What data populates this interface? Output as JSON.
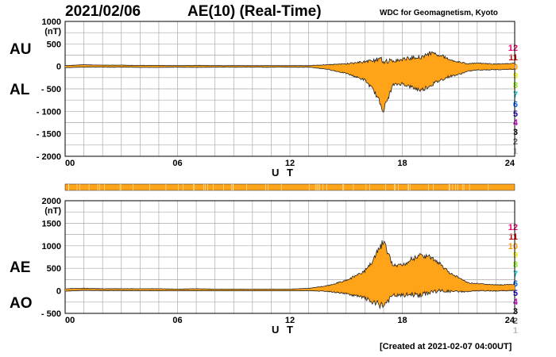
{
  "header": {
    "date": "2021/02/06",
    "title": "AE(10) (Real-Time)",
    "source": "WDC for Geomagnetism, Kyoto",
    "created": "[Created at 2021-02-07 04:00UT]"
  },
  "panel_labels": {
    "top_upper": "AU",
    "top_lower": "AL",
    "bottom_upper": "AE",
    "bottom_lower": "AO"
  },
  "colors": {
    "fill": "#ffa319",
    "outline": "#222222",
    "grid": "#aaaaaa"
  },
  "station_hours": [
    {
      "label": "12",
      "color": "#e8006e"
    },
    {
      "label": "11",
      "color": "#cc0000"
    },
    {
      "label": "10",
      "color": "#ff9900"
    },
    {
      "label": "9",
      "color": "#eeee00"
    },
    {
      "label": "8",
      "color": "#88ee00"
    },
    {
      "label": "7",
      "color": "#00cccc"
    },
    {
      "label": "6",
      "color": "#0066ff"
    },
    {
      "label": "5",
      "color": "#2200cc"
    },
    {
      "label": "4",
      "color": "#cc00cc"
    },
    {
      "label": "3",
      "color": "#000000"
    },
    {
      "label": "2",
      "color": "#666666"
    },
    {
      "label": "1",
      "color": "#bbbbbb"
    }
  ],
  "chart_data": [
    {
      "type": "area",
      "series": [
        {
          "name": "AU",
          "x": [
            0,
            1,
            2,
            3,
            4,
            5,
            6,
            7,
            8,
            9,
            10,
            11,
            12,
            13,
            14,
            15,
            16,
            16.5,
            17,
            17.5,
            18,
            18.5,
            19,
            19.5,
            20,
            20.5,
            21,
            21.5,
            22,
            23,
            24
          ],
          "values": [
            20,
            40,
            30,
            30,
            25,
            25,
            20,
            25,
            20,
            20,
            20,
            20,
            20,
            20,
            45,
            70,
            130,
            190,
            210,
            150,
            190,
            240,
            260,
            340,
            300,
            180,
            120,
            70,
            80,
            60,
            75
          ]
        },
        {
          "name": "AL",
          "x": [
            0,
            1,
            2,
            3,
            4,
            5,
            6,
            7,
            8,
            9,
            10,
            11,
            12,
            13,
            14,
            15,
            16,
            16.5,
            17,
            17.5,
            18,
            18.5,
            19,
            19.5,
            20,
            20.5,
            21,
            21.5,
            22,
            23,
            24
          ],
          "values": [
            -30,
            -20,
            -20,
            -20,
            -25,
            -25,
            -20,
            -25,
            -20,
            -20,
            -20,
            -20,
            -20,
            -20,
            -70,
            -170,
            -330,
            -600,
            -1050,
            -450,
            -420,
            -510,
            -580,
            -470,
            -350,
            -250,
            -200,
            -120,
            -90,
            -80,
            -70
          ]
        }
      ],
      "xlabel": "U T",
      "ylabel": "(nT)",
      "xticks": [
        "00",
        "06",
        "12",
        "18",
        "24"
      ],
      "xlim": [
        0,
        24
      ],
      "ylim": [
        -2000,
        1000
      ],
      "yticks": [
        "1000",
        "500",
        "0",
        "- 500",
        "- 1000",
        "- 1500",
        "- 2000"
      ],
      "grid": true
    },
    {
      "type": "area",
      "series": [
        {
          "name": "AE",
          "x": [
            0,
            1,
            2,
            3,
            4,
            5,
            6,
            7,
            8,
            9,
            10,
            11,
            12,
            13,
            14,
            15,
            16,
            16.5,
            17,
            17.5,
            18,
            18.5,
            19,
            19.5,
            20,
            20.5,
            21,
            21.5,
            22,
            23,
            24
          ],
          "values": [
            50,
            60,
            50,
            50,
            50,
            50,
            40,
            50,
            40,
            40,
            40,
            40,
            40,
            60,
            120,
            250,
            470,
            800,
            1200,
            600,
            610,
            760,
            840,
            810,
            650,
            430,
            320,
            190,
            170,
            140,
            150
          ]
        },
        {
          "name": "AO",
          "x": [
            0,
            1,
            2,
            3,
            4,
            5,
            6,
            7,
            8,
            9,
            10,
            11,
            12,
            13,
            14,
            15,
            16,
            16.5,
            17,
            17.5,
            18,
            18.5,
            19,
            19.5,
            20,
            20.5,
            21,
            21.5,
            22,
            23,
            24
          ],
          "values": [
            -10,
            10,
            5,
            5,
            0,
            0,
            0,
            0,
            0,
            0,
            0,
            0,
            0,
            0,
            -20,
            -80,
            -200,
            -350,
            -420,
            -150,
            -150,
            -130,
            -160,
            -80,
            -40,
            -40,
            -40,
            -30,
            -10,
            -10,
            0
          ]
        }
      ],
      "xlabel": "U T",
      "ylabel": "(nT)",
      "xticks": [
        "00",
        "06",
        "12",
        "18",
        "24"
      ],
      "xlim": [
        0,
        24
      ],
      "ylim": [
        -500,
        2000
      ],
      "yticks": [
        "2000",
        "1500",
        "1000",
        "500",
        "0",
        "- 500"
      ],
      "grid": true
    }
  ]
}
